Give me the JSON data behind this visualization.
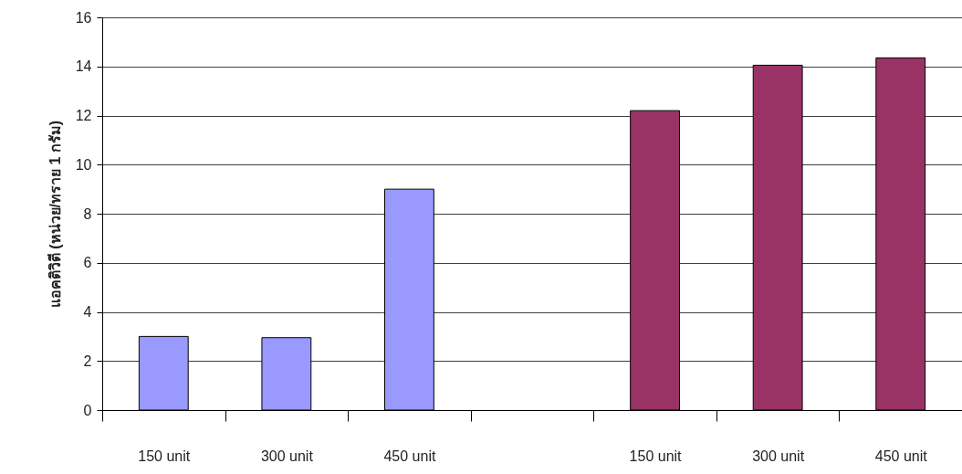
{
  "chart_data": {
    "type": "bar",
    "ylabel": "แอคติวิตี (หน่วย/ทราย 1 กรัม)",
    "categories": [
      "150 unit",
      "300 unit",
      "450 unit",
      null,
      "150 unit",
      "300 unit",
      "450 unit"
    ],
    "values": [
      3.0,
      2.95,
      9.0,
      null,
      12.2,
      14.05,
      14.35
    ],
    "colors": [
      "#9999ff",
      "#9999ff",
      "#9999ff",
      "#9999ff",
      "#993366",
      "#993366",
      "#993366"
    ],
    "ylim": [
      0,
      16
    ],
    "yticks": [
      0,
      2,
      4,
      6,
      8,
      10,
      12,
      14,
      16
    ],
    "grid": "y"
  }
}
